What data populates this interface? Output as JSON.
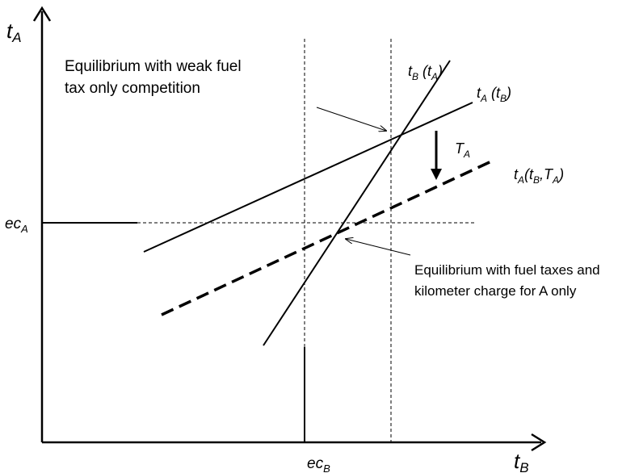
{
  "axes": {
    "y_label": [
      {
        "text": "t",
        "sub": false
      },
      {
        "text": "A",
        "sub": true
      }
    ],
    "x_label": [
      {
        "text": "t",
        "sub": false
      },
      {
        "text": "B",
        "sub": true
      }
    ],
    "y_mark": [
      {
        "text": "ec",
        "sub": false
      },
      {
        "text": "A",
        "sub": true
      }
    ],
    "x_mark": [
      {
        "text": "ec",
        "sub": false
      },
      {
        "text": "B",
        "sub": true
      }
    ]
  },
  "curves": {
    "tB_of_tA": [
      {
        "text": "t",
        "sub": false
      },
      {
        "text": "B",
        "sub": true
      },
      {
        "text": " (t",
        "sub": false
      },
      {
        "text": "A",
        "sub": true
      },
      {
        "text": ")",
        "sub": false
      }
    ],
    "tA_of_tB": [
      {
        "text": "t",
        "sub": false
      },
      {
        "text": "A",
        "sub": true
      },
      {
        "text": " (t",
        "sub": false
      },
      {
        "text": "B",
        "sub": true
      },
      {
        "text": ")",
        "sub": false
      }
    ],
    "shift": [
      {
        "text": "T",
        "sub": false
      },
      {
        "text": "A",
        "sub": true
      }
    ],
    "tA_of_tB_TA": [
      {
        "text": "t",
        "sub": false
      },
      {
        "text": "A",
        "sub": true
      },
      {
        "text": "(t",
        "sub": false
      },
      {
        "text": "B",
        "sub": true
      },
      {
        "text": ",T",
        "sub": false
      },
      {
        "text": "A",
        "sub": true
      },
      {
        "text": ")",
        "sub": false
      }
    ]
  },
  "annotations": {
    "weak": [
      "Equilibrium with weak  fuel",
      "tax only competition"
    ],
    "km": [
      "Equilibrium with fuel taxes and",
      "kilometer charge for A only"
    ]
  }
}
